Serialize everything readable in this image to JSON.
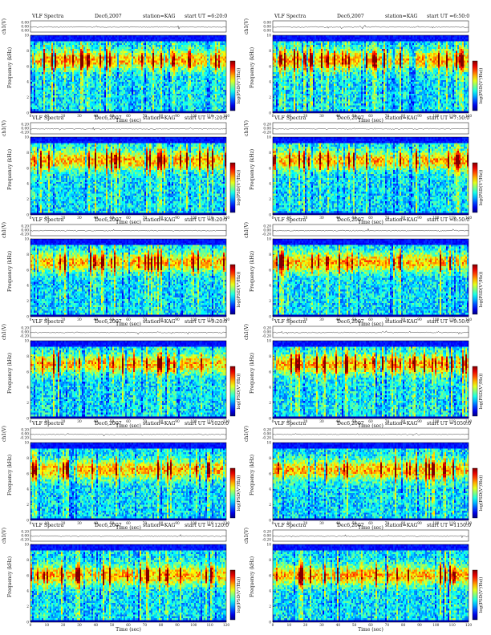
{
  "common": {
    "program": "VLF Spectra",
    "date": "Dec6,2007",
    "station": "station=KAG",
    "start_prefix": "start  UT ="
  },
  "chart_data": [
    {
      "type": "heatmap",
      "start": "6:20:0",
      "ch_label": "ch1(V)",
      "ylabel": "Frequency (kHz)",
      "xlabel": "Time (sec)",
      "colorbar_label": "log(PSD(V²/Hz))",
      "xlim": [
        0,
        120
      ],
      "ylim": [
        0,
        10
      ],
      "x_ticks": [
        0,
        10,
        20,
        30,
        40,
        50,
        60,
        70,
        80,
        90,
        100,
        110,
        120
      ],
      "y_ticks": [
        0,
        2,
        4,
        6,
        8,
        10
      ],
      "ch_ticks": [
        "0.00",
        "0.00",
        "0.00"
      ],
      "band_top_khz": 9.3,
      "band_peak_khz": 6.8
    },
    {
      "type": "heatmap",
      "start": "6:50:0",
      "ch_label": "ch1(V)",
      "ylabel": "Frequency (kHz)",
      "xlabel": "Time (sec)",
      "colorbar_label": "log(PSD(V²/Hz))",
      "xlim": [
        0,
        120
      ],
      "ylim": [
        0,
        10
      ],
      "x_ticks": [
        0,
        10,
        20,
        30,
        40,
        50,
        60,
        70,
        80,
        90,
        100,
        110,
        120
      ],
      "y_ticks": [
        0,
        2,
        4,
        6,
        8,
        10
      ],
      "ch_ticks": [
        "0.00",
        "0.00",
        "0.00"
      ],
      "band_top_khz": 9.3,
      "band_peak_khz": 6.8
    },
    {
      "type": "heatmap",
      "start": "7:20:0",
      "ch_label": "ch1(V)",
      "ylabel": "Frequency (kHz)",
      "xlabel": "Time (sec)",
      "colorbar_label": "log(PSD(V²/Hz))",
      "xlim": [
        0,
        120
      ],
      "ylim": [
        0,
        10
      ],
      "x_ticks": [
        0,
        10,
        20,
        30,
        40,
        50,
        60,
        70,
        80,
        90,
        100,
        110,
        120
      ],
      "y_ticks": [
        0,
        2,
        4,
        6,
        8,
        10
      ],
      "ch_ticks": [
        "0.20",
        "0.00",
        "-0.20"
      ],
      "band_top_khz": 9.3,
      "band_peak_khz": 7.0
    },
    {
      "type": "heatmap",
      "start": "7:50:0",
      "ch_label": "ch1(V)",
      "ylabel": "Frequency (kHz)",
      "xlabel": "Time (sec)",
      "colorbar_label": "log(PSD(V²/Hz))",
      "xlim": [
        0,
        120
      ],
      "ylim": [
        0,
        10
      ],
      "x_ticks": [
        0,
        10,
        20,
        30,
        40,
        50,
        60,
        70,
        80,
        90,
        100,
        110,
        120
      ],
      "y_ticks": [
        0,
        2,
        4,
        6,
        8,
        10
      ],
      "ch_ticks": [
        "0.20",
        "0.00",
        "-0.20"
      ],
      "band_top_khz": 9.3,
      "band_peak_khz": 7.0
    },
    {
      "type": "heatmap",
      "start": "8:20:0",
      "ch_label": "ch1(V)",
      "ylabel": "Frequency (kHz)",
      "xlabel": "Time (sec)",
      "colorbar_label": "log(PSD(V²/Hz))",
      "xlim": [
        0,
        120
      ],
      "ylim": [
        0,
        10
      ],
      "x_ticks": [
        0,
        10,
        20,
        30,
        40,
        50,
        60,
        70,
        80,
        90,
        100,
        110,
        120
      ],
      "y_ticks": [
        0,
        2,
        4,
        6,
        8,
        10
      ],
      "ch_ticks": [
        "0.20",
        "0.00",
        "-0.20"
      ],
      "band_top_khz": 9.3,
      "band_peak_khz": 7.0
    },
    {
      "type": "heatmap",
      "start": "8:50:0",
      "ch_label": "ch1(V)",
      "ylabel": "Frequency (kHz)",
      "xlabel": "Time (sec)",
      "colorbar_label": "log(PSD(V²/Hz))",
      "xlim": [
        0,
        120
      ],
      "ylim": [
        0,
        10
      ],
      "x_ticks": [
        0,
        10,
        20,
        30,
        40,
        50,
        60,
        70,
        80,
        90,
        100,
        110,
        120
      ],
      "y_ticks": [
        0,
        2,
        4,
        6,
        8,
        10
      ],
      "ch_ticks": [
        "0.20",
        "0.00",
        "-0.20"
      ],
      "band_top_khz": 9.3,
      "band_peak_khz": 7.0
    },
    {
      "type": "heatmap",
      "start": "9:20:0",
      "ch_label": "ch1(V)",
      "ylabel": "Frequency (kHz)",
      "xlabel": "Time (sec)",
      "colorbar_label": "log(PSD(V²/Hz))",
      "xlim": [
        0,
        120
      ],
      "ylim": [
        0,
        10
      ],
      "x_ticks": [
        0,
        10,
        20,
        30,
        40,
        50,
        60,
        70,
        80,
        90,
        100,
        110,
        120
      ],
      "y_ticks": [
        0,
        2,
        4,
        6,
        8,
        10
      ],
      "ch_ticks": [
        "0.20",
        "0.00",
        "-0.20"
      ],
      "band_top_khz": 9.3,
      "band_peak_khz": 7.0
    },
    {
      "type": "heatmap",
      "start": "9:50:0",
      "ch_label": "ch1(V)",
      "ylabel": "Frequency (kHz)",
      "xlabel": "Time (sec)",
      "colorbar_label": "log(PSD(V²/Hz))",
      "xlim": [
        0,
        120
      ],
      "ylim": [
        0,
        10
      ],
      "x_ticks": [
        0,
        10,
        20,
        30,
        40,
        50,
        60,
        70,
        80,
        90,
        100,
        110,
        120
      ],
      "y_ticks": [
        0,
        2,
        4,
        6,
        8,
        10
      ],
      "ch_ticks": [
        "0.20",
        "0.00",
        "-0.20"
      ],
      "band_top_khz": 9.3,
      "band_peak_khz": 7.0
    },
    {
      "type": "heatmap",
      "start": "1020:0",
      "ch_label": "ch1(V)",
      "ylabel": "Frequency (kHz)",
      "xlabel": "Time (sec)",
      "colorbar_label": "log(PSD(V²/Hz))",
      "xlim": [
        0,
        120
      ],
      "ylim": [
        0,
        10
      ],
      "x_ticks": [
        0,
        10,
        20,
        30,
        40,
        50,
        60,
        70,
        80,
        90,
        100,
        110,
        120
      ],
      "y_ticks": [
        0,
        2,
        4,
        6,
        8,
        10
      ],
      "ch_ticks": [
        "0.20",
        "0.00",
        "-0.20"
      ],
      "band_top_khz": 9.3,
      "band_peak_khz": 6.5
    },
    {
      "type": "heatmap",
      "start": "1050:0",
      "ch_label": "ch1(V)",
      "ylabel": "Frequency (kHz)",
      "xlabel": "Time (sec)",
      "colorbar_label": "log(PSD(V²/Hz))",
      "xlim": [
        0,
        120
      ],
      "ylim": [
        0,
        10
      ],
      "x_ticks": [
        0,
        10,
        20,
        30,
        40,
        50,
        60,
        70,
        80,
        90,
        100,
        110,
        120
      ],
      "y_ticks": [
        0,
        2,
        4,
        6,
        8,
        10
      ],
      "ch_ticks": [
        "0.20",
        "0.00",
        "-0.20"
      ],
      "band_top_khz": 9.3,
      "band_peak_khz": 6.5
    },
    {
      "type": "heatmap",
      "start": "1120:0",
      "ch_label": "ch1(V)",
      "ylabel": "Frequency (kHz)",
      "xlabel": "Time (sec)",
      "colorbar_label": "log(PSD(V²/Hz))",
      "xlim": [
        0,
        120
      ],
      "ylim": [
        0,
        10
      ],
      "x_ticks": [
        0,
        10,
        20,
        30,
        40,
        50,
        60,
        70,
        80,
        90,
        100,
        110,
        120
      ],
      "y_ticks": [
        0,
        2,
        4,
        6,
        8,
        10
      ],
      "ch_ticks": [
        "0.20",
        "0.00",
        "-0.20"
      ],
      "band_top_khz": 9.3,
      "band_peak_khz": 6.0
    },
    {
      "type": "heatmap",
      "start": "1150:0",
      "ch_label": "ch1(V)",
      "ylabel": "Frequency (kHz)",
      "xlabel": "Time (sec)",
      "colorbar_label": "log(PSD(V²/Hz))",
      "xlim": [
        0,
        120
      ],
      "ylim": [
        0,
        10
      ],
      "x_ticks": [
        0,
        10,
        20,
        30,
        40,
        50,
        60,
        70,
        80,
        90,
        100,
        110,
        120
      ],
      "y_ticks": [
        0,
        2,
        4,
        6,
        8,
        10
      ],
      "ch_ticks": [
        "0.20",
        "0.00",
        "-0.20"
      ],
      "band_top_khz": 9.3,
      "band_peak_khz": 6.0
    }
  ]
}
